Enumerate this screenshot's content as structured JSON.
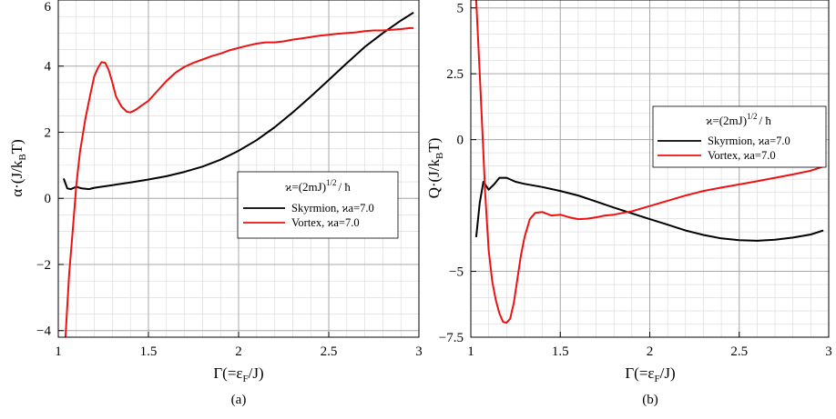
{
  "chart_data": [
    {
      "type": "line",
      "panel_label": "(a)",
      "xlabel": {
        "pre": "Γ(=ε",
        "sub": "F",
        "post": "/J)"
      },
      "ylabel": {
        "pre": "α·(J/k",
        "sub": "B",
        "post": "T)"
      },
      "xlim": [
        1,
        3
      ],
      "ylim": [
        -4.2,
        6.0
      ],
      "xticks": [
        1,
        1.5,
        2,
        2.5,
        3
      ],
      "xtick_labels": [
        "1",
        "1.5",
        "2",
        "2.5",
        "3"
      ],
      "yticks": [
        -4,
        -2,
        0,
        2,
        4,
        6
      ],
      "ytick_labels": [
        "−4",
        "−2",
        "0",
        "2",
        "4",
        "6"
      ],
      "legend": {
        "title": {
          "pre": "ϰ=(2mJ)",
          "sup": "1/2",
          "post": "/ ħ"
        },
        "entries": [
          "Skyrmion, ϰa=7.0",
          "Vortex, ϰa=7.0"
        ]
      },
      "grid": true,
      "series": [
        {
          "name": "Skyrmion, ϰa=7.0",
          "color": "#000000",
          "x": [
            1.03,
            1.05,
            1.07,
            1.1,
            1.13,
            1.17,
            1.2,
            1.3,
            1.4,
            1.5,
            1.6,
            1.7,
            1.8,
            1.9,
            2.0,
            2.1,
            2.2,
            2.3,
            2.4,
            2.5,
            2.6,
            2.7,
            2.8,
            2.9,
            2.97
          ],
          "y": [
            0.6,
            0.3,
            0.28,
            0.35,
            0.3,
            0.28,
            0.32,
            0.4,
            0.48,
            0.57,
            0.67,
            0.8,
            0.96,
            1.17,
            1.44,
            1.76,
            2.15,
            2.6,
            3.08,
            3.58,
            4.09,
            4.58,
            5.0,
            5.38,
            5.62
          ]
        },
        {
          "name": "Vortex, ϰa=7.0",
          "color": "#ee1111",
          "x": [
            1.04,
            1.06,
            1.08,
            1.1,
            1.12,
            1.15,
            1.18,
            1.2,
            1.22,
            1.24,
            1.26,
            1.28,
            1.3,
            1.32,
            1.35,
            1.38,
            1.4,
            1.43,
            1.46,
            1.5,
            1.55,
            1.6,
            1.65,
            1.7,
            1.75,
            1.8,
            1.85,
            1.9,
            1.95,
            2.0,
            2.05,
            2.1,
            2.15,
            2.2,
            2.25,
            2.3,
            2.35,
            2.4,
            2.45,
            2.5,
            2.55,
            2.6,
            2.65,
            2.7,
            2.75,
            2.8,
            2.85,
            2.9,
            2.95,
            2.97
          ],
          "y": [
            -4.2,
            -2.3,
            -1.0,
            0.4,
            1.4,
            2.4,
            3.2,
            3.7,
            3.95,
            4.12,
            4.1,
            3.88,
            3.5,
            3.08,
            2.78,
            2.62,
            2.6,
            2.68,
            2.8,
            2.95,
            3.25,
            3.55,
            3.8,
            3.98,
            4.1,
            4.2,
            4.3,
            4.38,
            4.48,
            4.55,
            4.62,
            4.68,
            4.72,
            4.72,
            4.75,
            4.8,
            4.84,
            4.88,
            4.92,
            4.95,
            4.98,
            5.0,
            5.02,
            5.06,
            5.08,
            5.08,
            5.1,
            5.12,
            5.15,
            5.15
          ]
        }
      ]
    },
    {
      "type": "line",
      "panel_label": "(b)",
      "xlabel": {
        "pre": "Γ(=ε",
        "sub": "F",
        "post": "/J)"
      },
      "ylabel": {
        "pre": "Q·(J/k",
        "sub": "B",
        "post": "T)"
      },
      "xlim": [
        1,
        3
      ],
      "ylim": [
        -7.5,
        5.3
      ],
      "xticks": [
        1,
        1.5,
        2,
        2.5,
        3
      ],
      "xtick_labels": [
        "1",
        "1.5",
        "2",
        "2.5",
        "3"
      ],
      "yticks": [
        -7.5,
        -5,
        0,
        2.5,
        5
      ],
      "ytick_labels": [
        "−7.5",
        "−5",
        "0",
        "2.5",
        "5"
      ],
      "legend": {
        "title": {
          "pre": "ϰ=(2mJ)",
          "sup": "1/2",
          "post": "/ ħ"
        },
        "entries": [
          "Skyrmion, ϰa=7.0",
          "Vortex, ϰa=7.0"
        ]
      },
      "grid": true,
      "series": [
        {
          "name": "Skyrmion, ϰa=7.0",
          "color": "#000000",
          "x": [
            1.03,
            1.05,
            1.07,
            1.1,
            1.13,
            1.16,
            1.2,
            1.25,
            1.3,
            1.4,
            1.5,
            1.6,
            1.7,
            1.8,
            1.9,
            2.0,
            2.1,
            2.2,
            2.3,
            2.4,
            2.5,
            2.6,
            2.7,
            2.8,
            2.9,
            2.97
          ],
          "y": [
            -3.7,
            -2.4,
            -1.6,
            -1.9,
            -1.7,
            -1.45,
            -1.45,
            -1.6,
            -1.68,
            -1.8,
            -1.95,
            -2.12,
            -2.35,
            -2.58,
            -2.8,
            -3.02,
            -3.23,
            -3.45,
            -3.62,
            -3.75,
            -3.82,
            -3.84,
            -3.8,
            -3.72,
            -3.6,
            -3.45
          ]
        },
        {
          "name": "Vortex, ϰa=7.0",
          "color": "#ee1111",
          "x": [
            1.03,
            1.05,
            1.07,
            1.08,
            1.1,
            1.12,
            1.14,
            1.16,
            1.18,
            1.2,
            1.22,
            1.24,
            1.26,
            1.28,
            1.3,
            1.33,
            1.36,
            1.4,
            1.45,
            1.5,
            1.55,
            1.6,
            1.65,
            1.7,
            1.75,
            1.8,
            1.85,
            1.9,
            1.95,
            2.0,
            2.05,
            2.1,
            2.2,
            2.3,
            2.4,
            2.5,
            2.6,
            2.7,
            2.8,
            2.9,
            2.97
          ],
          "y": [
            5.3,
            2.5,
            -0.5,
            -2.0,
            -4.2,
            -5.4,
            -6.1,
            -6.6,
            -6.92,
            -6.95,
            -6.8,
            -6.2,
            -5.3,
            -4.4,
            -3.7,
            -3.02,
            -2.78,
            -2.75,
            -2.88,
            -2.85,
            -2.95,
            -3.02,
            -3.0,
            -2.95,
            -2.88,
            -2.85,
            -2.78,
            -2.72,
            -2.62,
            -2.52,
            -2.42,
            -2.32,
            -2.12,
            -1.95,
            -1.82,
            -1.7,
            -1.58,
            -1.45,
            -1.32,
            -1.18,
            -1.02
          ]
        }
      ]
    }
  ]
}
